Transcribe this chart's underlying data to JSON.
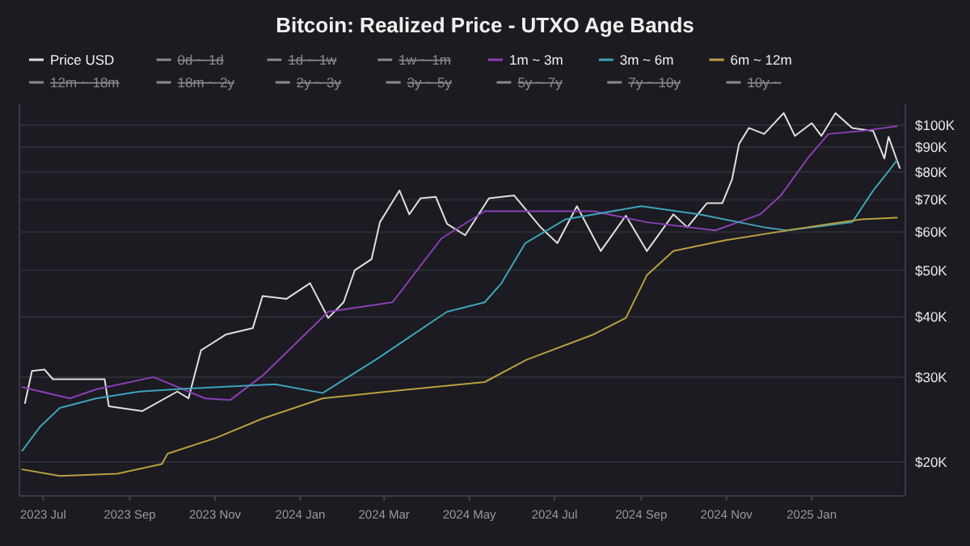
{
  "chart_data": {
    "type": "line",
    "title": "Bitcoin: Realized Price - UTXO Age Bands",
    "log": "y",
    "grid": "y",
    "legend": "top left",
    "xlim": [
      "2023-06-14",
      "2025-03-09"
    ],
    "ylim": [
      17000,
      111000
    ],
    "xticks": [
      {
        "value": "2023-07-01",
        "label": "2023 Jul"
      },
      {
        "value": "2023-09-01",
        "label": "2023 Sep"
      },
      {
        "value": "2023-11-01",
        "label": "2023 Nov"
      },
      {
        "value": "2024-01-01",
        "label": "2024 Jan"
      },
      {
        "value": "2024-03-01",
        "label": "2024 Mar"
      },
      {
        "value": "2024-05-01",
        "label": "2024 May"
      },
      {
        "value": "2024-07-01",
        "label": "2024 Jul"
      },
      {
        "value": "2024-09-01",
        "label": "2024 Sep"
      },
      {
        "value": "2024-11-01",
        "label": "2024 Nov"
      },
      {
        "value": "2025-01-01",
        "label": "2025 Jan"
      }
    ],
    "yticks": [
      {
        "value": 20000,
        "label": "$20K"
      },
      {
        "value": 30000,
        "label": "$30K"
      },
      {
        "value": 40000,
        "label": "$40K"
      },
      {
        "value": 50000,
        "label": "$50K"
      },
      {
        "value": 60000,
        "label": "$60K"
      },
      {
        "value": 70000,
        "label": "$70K"
      },
      {
        "value": 80000,
        "label": "$80K"
      },
      {
        "value": 90000,
        "label": "$90K"
      },
      {
        "value": 100000,
        "label": "$100K"
      }
    ],
    "series": [
      {
        "name": "Price USD",
        "color": "#e0e0e0",
        "x": [
          "2023-06-18",
          "2023-06-23",
          "2023-07-02",
          "2023-07-08",
          "2023-07-28",
          "2023-08-14",
          "2023-08-17",
          "2023-09-10",
          "2023-10-05",
          "2023-10-13",
          "2023-10-22",
          "2023-11-09",
          "2023-11-28",
          "2023-12-05",
          "2023-12-22",
          "2024-01-08",
          "2024-01-21",
          "2024-02-01",
          "2024-02-09",
          "2024-02-21",
          "2024-02-27",
          "2024-03-12",
          "2024-03-19",
          "2024-03-27",
          "2024-04-07",
          "2024-04-15",
          "2024-04-28",
          "2024-05-15",
          "2024-06-02",
          "2024-06-21",
          "2024-07-03",
          "2024-07-17",
          "2024-08-03",
          "2024-08-21",
          "2024-09-05",
          "2024-09-24",
          "2024-10-04",
          "2024-10-18",
          "2024-10-29",
          "2024-11-05",
          "2024-11-10",
          "2024-11-17",
          "2024-11-28",
          "2024-12-12",
          "2024-12-20",
          "2025-01-01",
          "2025-01-08",
          "2025-01-18",
          "2025-01-30",
          "2025-02-14",
          "2025-02-22",
          "2025-02-25",
          "2025-03-05"
        ],
        "values": [
          26500,
          30900,
          31100,
          29700,
          29700,
          29700,
          26100,
          25500,
          28000,
          27100,
          34100,
          36800,
          37900,
          44200,
          43600,
          47000,
          39800,
          42900,
          50000,
          52700,
          62900,
          73200,
          65300,
          70500,
          71000,
          62400,
          59100,
          70500,
          71500,
          61400,
          56900,
          67900,
          54800,
          64900,
          54800,
          65300,
          61400,
          68900,
          68900,
          77200,
          91400,
          98700,
          95900,
          106000,
          95000,
          101000,
          95000,
          106000,
          98700,
          97300,
          85300,
          94600,
          81500
        ]
      },
      {
        "name": "0d ~ 1d",
        "color": "#8a8a8a"
      },
      {
        "name": "1d ~ 1w",
        "color": "#8a8a8a"
      },
      {
        "name": "1w ~ 1m",
        "color": "#8a8a8a"
      },
      {
        "name": "1m ~ 3m",
        "color": "#8a3fb5",
        "x": [
          "2023-06-16",
          "2023-07-20",
          "2023-08-08",
          "2023-09-18",
          "2023-10-25",
          "2023-11-12",
          "2023-12-05",
          "2024-01-09",
          "2024-01-21",
          "2024-03-07",
          "2024-04-11",
          "2024-05-12",
          "2024-06-19",
          "2024-07-29",
          "2024-09-05",
          "2024-10-24",
          "2024-11-25",
          "2024-12-10",
          "2024-12-29",
          "2025-01-13",
          "2025-02-06",
          "2025-03-03"
        ],
        "values": [
          28600,
          27100,
          28300,
          30000,
          27100,
          26900,
          30200,
          37900,
          41000,
          42900,
          58200,
          66300,
          66300,
          66300,
          62900,
          60500,
          65300,
          71500,
          85300,
          95900,
          97300,
          99500
        ]
      },
      {
        "name": "3m ~ 6m",
        "color": "#3fa3b8",
        "x": [
          "2023-06-16",
          "2023-06-29",
          "2023-07-13",
          "2023-08-08",
          "2023-09-08",
          "2023-10-13",
          "2023-12-14",
          "2024-01-17",
          "2024-02-24",
          "2024-04-15",
          "2024-05-12",
          "2024-05-24",
          "2024-06-10",
          "2024-07-09",
          "2024-09-01",
          "2024-10-13",
          "2024-11-28",
          "2024-12-14",
          "2025-01-30",
          "2025-02-14",
          "2025-02-25",
          "2025-03-03"
        ],
        "values": [
          21100,
          23700,
          25900,
          27100,
          28000,
          28400,
          29000,
          27800,
          32600,
          41000,
          42900,
          47000,
          56900,
          63800,
          67900,
          65300,
          61400,
          60500,
          62900,
          73200,
          80300,
          84600
        ]
      },
      {
        "name": "6m ~ 12m",
        "color": "#b8a040",
        "x": [
          "2023-06-16",
          "2023-07-13",
          "2023-08-23",
          "2023-09-24",
          "2023-09-28",
          "2023-11-01",
          "2023-12-05",
          "2024-01-17",
          "2024-03-04",
          "2024-05-12",
          "2024-06-11",
          "2024-07-29",
          "2024-08-21",
          "2024-09-05",
          "2024-09-24",
          "2024-10-31",
          "2024-12-29",
          "2025-02-06",
          "2025-03-03"
        ],
        "values": [
          19300,
          18700,
          18900,
          19800,
          20800,
          22400,
          24600,
          27100,
          28000,
          29300,
          32600,
          36800,
          39800,
          48800,
          54800,
          57700,
          61400,
          63800,
          64300
        ]
      },
      {
        "name": "12m ~ 18m",
        "color": "#8a8a8a"
      },
      {
        "name": "18m ~ 2y",
        "color": "#8a8a8a"
      },
      {
        "name": "2y ~ 3y",
        "color": "#8a8a8a"
      },
      {
        "name": "3y ~ 5y",
        "color": "#8a8a8a"
      },
      {
        "name": "5y ~ 7y",
        "color": "#8a8a8a"
      },
      {
        "name": "7y ~ 10y",
        "color": "#8a8a8a"
      },
      {
        "name": "10y ~",
        "color": "#8a8a8a"
      }
    ]
  }
}
